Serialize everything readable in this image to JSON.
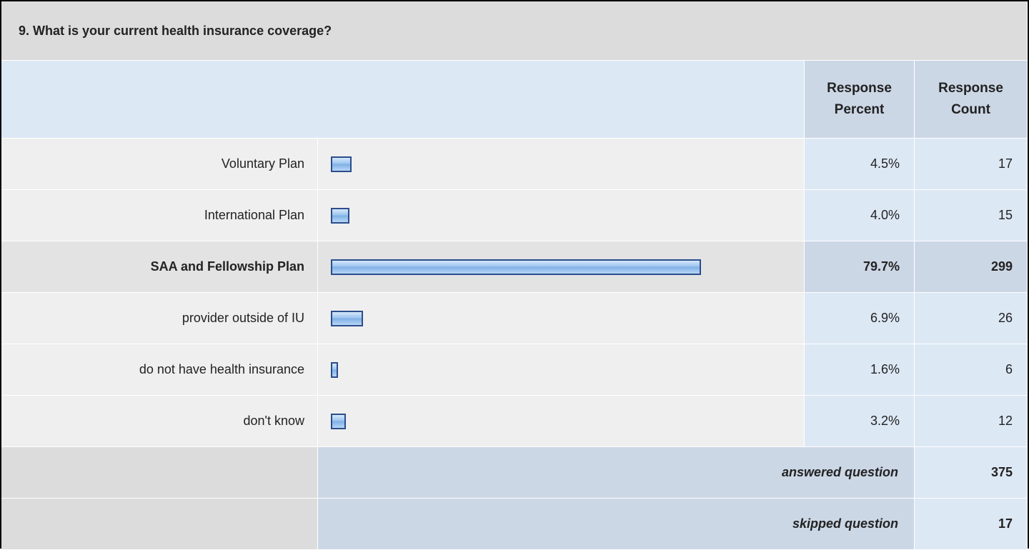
{
  "question": {
    "title": "9. What is your current health insurance coverage?"
  },
  "table": {
    "headers": {
      "percent": "Response\nPercent",
      "count": "Response\nCount"
    },
    "rows": [
      {
        "label": "Voluntary Plan",
        "percent": 4.5,
        "percent_label": "4.5%",
        "count": 17
      },
      {
        "label": "International Plan",
        "percent": 4.0,
        "percent_label": "4.0%",
        "count": 15
      },
      {
        "label": "SAA and Fellowship Plan",
        "percent": 79.7,
        "percent_label": "79.7%",
        "count": 299
      },
      {
        "label": "provider outside of IU",
        "percent": 6.9,
        "percent_label": "6.9%",
        "count": 26
      },
      {
        "label": "do not have health insurance",
        "percent": 1.6,
        "percent_label": "1.6%",
        "count": 6
      },
      {
        "label": "don't know",
        "percent": 3.2,
        "percent_label": "3.2%",
        "count": 12
      }
    ],
    "highlighted_row": 2,
    "bar_scale_max": 100,
    "footer": [
      {
        "label": "answered question",
        "count": 375
      },
      {
        "label": "skipped question",
        "count": 17
      }
    ]
  }
}
